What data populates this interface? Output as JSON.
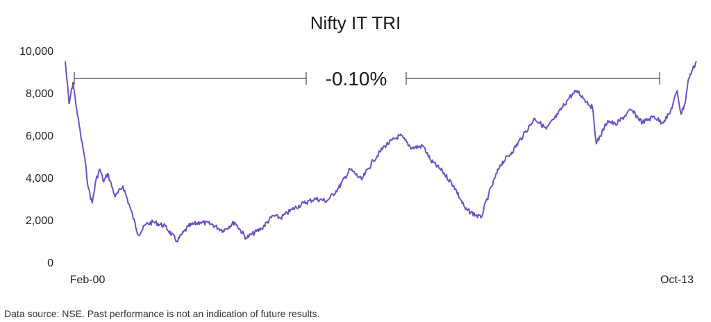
{
  "chart_data": {
    "type": "line",
    "title": "Nifty IT TRI",
    "xlabel": "",
    "ylabel": "",
    "ylim": [
      0,
      10000
    ],
    "yticks": [
      0,
      2000,
      4000,
      6000,
      8000,
      10000
    ],
    "ytick_labels": [
      "0",
      "2,000",
      "4,000",
      "6,000",
      "8,000",
      "10,000"
    ],
    "xtick_labels": [
      "Feb-00",
      "Oct-13"
    ],
    "grid": false,
    "legend": "none",
    "line_color": "#6B4FC8",
    "annotation": {
      "text": "-0.10%",
      "from": "Feb-00",
      "to": "Oct-13"
    },
    "series": [
      {
        "x": [
          "Feb-00",
          "Mar-00",
          "Apr-00",
          "May-00",
          "Jun-00",
          "Jul-00",
          "Aug-00",
          "Sep-00",
          "Oct-00",
          "Nov-00",
          "Dec-00",
          "Jan-01",
          "Mar-01",
          "May-01",
          "Jul-01",
          "Sep-01",
          "Nov-01",
          "Jan-02",
          "Apr-02",
          "Jul-02",
          "Oct-02",
          "Jan-03",
          "Apr-03",
          "Jul-03",
          "Oct-03",
          "Jan-04",
          "May-04",
          "Aug-04",
          "Oct-04",
          "Jan-05",
          "Apr-05",
          "Jul-05",
          "Oct-05",
          "Jan-06",
          "Apr-06",
          "Jul-06",
          "Oct-06",
          "Jan-07",
          "May-07",
          "Aug-07",
          "Nov-07",
          "Jan-08",
          "Apr-08",
          "Jul-08",
          "Oct-08",
          "Feb-09",
          "Apr-09",
          "Jul-09",
          "Oct-09",
          "Jan-10",
          "Apr-10",
          "Jul-10",
          "Oct-10",
          "Jan-11",
          "Mar-11",
          "Jul-11",
          "Aug-11",
          "Nov-11",
          "Jan-12",
          "May-12",
          "Aug-12",
          "Nov-12",
          "Jan-13",
          "Mar-13",
          "May-13",
          "Jun-13",
          "Jul-13",
          "Aug-13",
          "Sep-13",
          "Oct-13"
        ],
        "values": [
          9500,
          7500,
          8500,
          7200,
          6000,
          5000,
          3500,
          2800,
          3900,
          4400,
          3800,
          4200,
          3100,
          3600,
          2500,
          1300,
          1800,
          1900,
          1700,
          1000,
          1700,
          1900,
          1800,
          1500,
          1900,
          1150,
          1600,
          2200,
          2100,
          2500,
          2800,
          3000,
          2900,
          3500,
          4400,
          3900,
          4800,
          5500,
          6000,
          5400,
          5500,
          4800,
          4300,
          3600,
          2500,
          2100,
          3200,
          4600,
          5200,
          6000,
          6800,
          6300,
          7000,
          7800,
          8100,
          7300,
          5600,
          6700,
          6500,
          7200,
          6600,
          6900,
          6600,
          7000,
          8100,
          7000,
          7500,
          8700,
          9100,
          9500
        ]
      }
    ]
  },
  "footnote": "Data source: NSE. Past performance is not an indication of future results."
}
